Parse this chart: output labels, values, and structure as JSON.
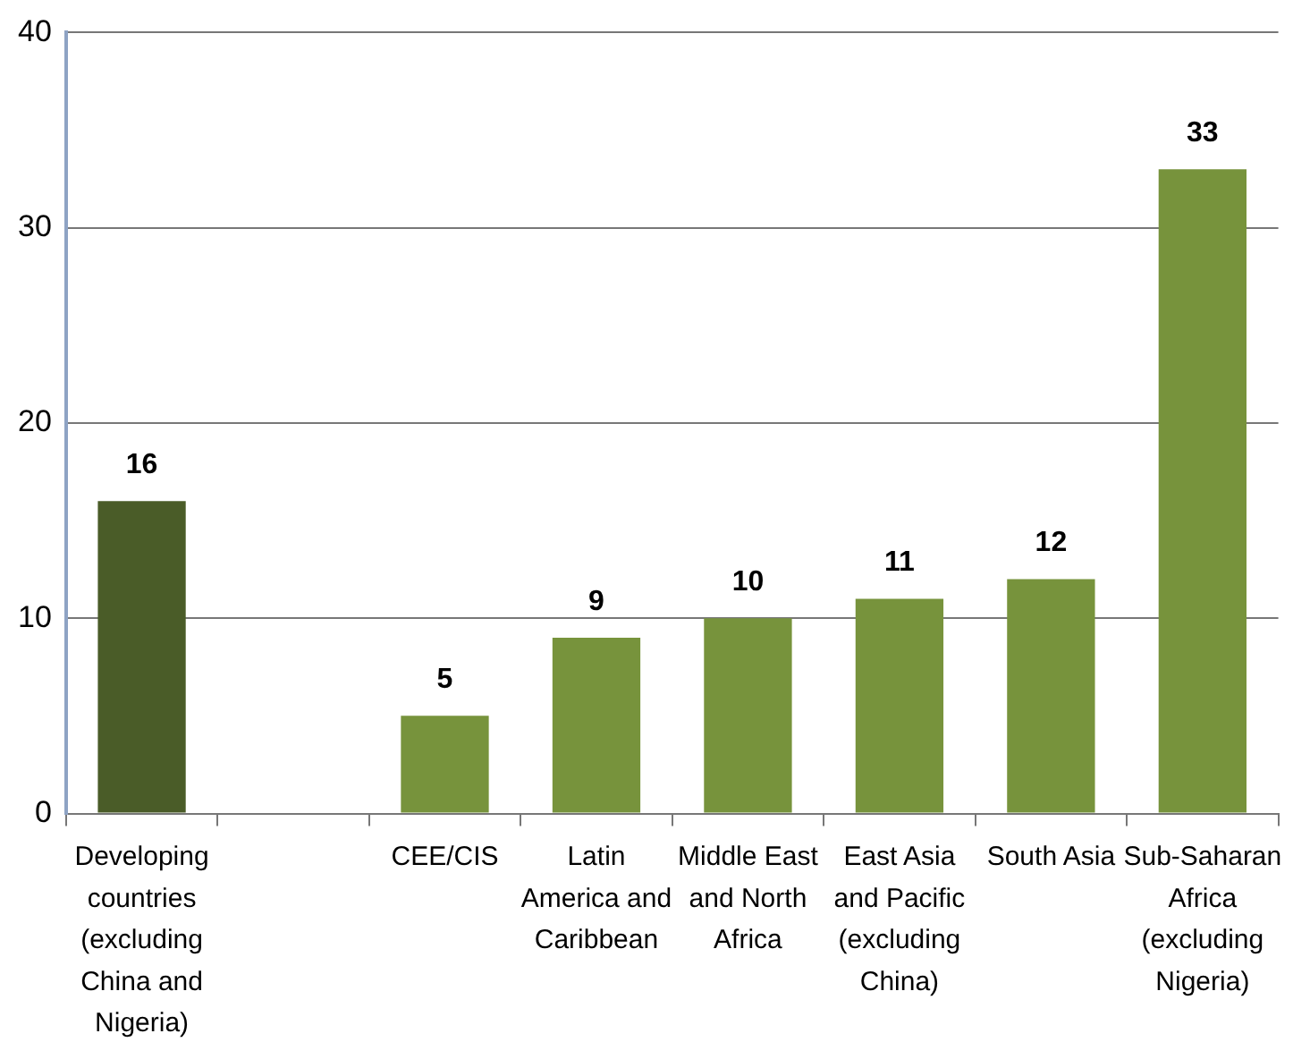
{
  "chart_data": {
    "type": "bar",
    "categories": [
      "Developing countries (excluding China and Nigeria)",
      null,
      "CEE/CIS",
      "Latin America and Caribbean",
      "Middle East and North Africa",
      "East Asia and Pacific (excluding China)",
      "South Asia",
      "Sub-Saharan Africa (excluding Nigeria)"
    ],
    "values": [
      16,
      null,
      5,
      9,
      10,
      11,
      12,
      33
    ],
    "colors": [
      "#4a5c28",
      "#77933c",
      "#77933c",
      "#77933c",
      "#77933c",
      "#77933c",
      "#77933c",
      "#77933c"
    ],
    "ylim": [
      0,
      40
    ],
    "yticks": [
      0,
      10,
      20,
      30,
      40
    ],
    "grid": "y",
    "legend": false,
    "data_labels": true
  }
}
